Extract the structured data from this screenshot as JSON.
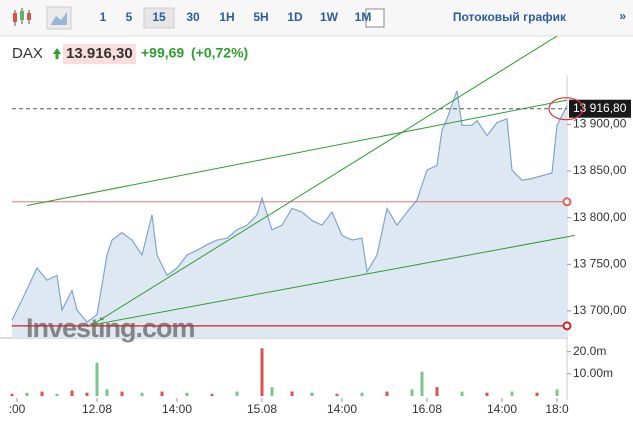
{
  "toolbar": {
    "intervals": [
      "1",
      "5",
      "15",
      "30",
      "1H",
      "5H",
      "1D",
      "1W",
      "1M"
    ],
    "active_interval": 2,
    "stream": "Потоковый график",
    "more": "»"
  },
  "header": {
    "symbol": "DAX",
    "price": "13.916,30",
    "change": "+99,69",
    "change_pct": "(+0,72%)",
    "watermark": "Investing.com"
  },
  "chart_data": [
    {
      "type": "area",
      "color": "#7fa6cc",
      "fill": "#dde8f2",
      "x": [
        0,
        2,
        5,
        7,
        9,
        10,
        12,
        13,
        15,
        17,
        19,
        20,
        22,
        24,
        26,
        28,
        29,
        31,
        33,
        35,
        37,
        39,
        41,
        43,
        45,
        47,
        49,
        50,
        52,
        54,
        56,
        58,
        60,
        62,
        64,
        66,
        68,
        70,
        71,
        73,
        75,
        77,
        79,
        81,
        83,
        85,
        86,
        87,
        89,
        90,
        92,
        93,
        95,
        97,
        99,
        100,
        102,
        104,
        106,
        108,
        109,
        111
      ],
      "values": [
        13690,
        13712,
        13746,
        13733,
        13738,
        13701,
        13722,
        13701,
        13688,
        13696,
        13760,
        13776,
        13784,
        13776,
        13760,
        13803,
        13760,
        13738,
        13746,
        13760,
        13765,
        13771,
        13776,
        13778,
        13787,
        13792,
        13803,
        13821,
        13787,
        13792,
        13810,
        13806,
        13797,
        13792,
        13806,
        13781,
        13776,
        13778,
        13742,
        13760,
        13810,
        13792,
        13806,
        13819,
        13851,
        13856,
        13894,
        13906,
        13936,
        13899,
        13899,
        13904,
        13888,
        13902,
        13906,
        13851,
        13840,
        13842,
        13845,
        13848,
        13899,
        13920
      ],
      "xlim": [
        0,
        111
      ],
      "ylim": [
        13671,
        13939
      ],
      "xticks": [
        {
          "value": 1,
          "label": ":00"
        },
        {
          "value": 17,
          "label": "12.08"
        },
        {
          "value": 33,
          "label": "14:00"
        },
        {
          "value": 50,
          "label": "15.08"
        },
        {
          "value": 66,
          "label": "14:00"
        },
        {
          "value": 83,
          "label": "16.08"
        },
        {
          "value": 98,
          "label": "14:00"
        },
        {
          "value": 109,
          "label": "18:0"
        }
      ],
      "yticks": [
        {
          "value": 13700,
          "label": "13 700,00"
        },
        {
          "value": 13750,
          "label": "13 750,00"
        },
        {
          "value": 13800,
          "label": "13 800,00"
        },
        {
          "value": 13850,
          "label": "13 850,00"
        },
        {
          "value": 13900,
          "label": "13 900,00"
        }
      ],
      "last_price": {
        "value": 13916.8,
        "label": "13 916,80"
      },
      "lines": [
        {
          "x": [
            3,
            111
          ],
          "y": [
            13813,
            13926
          ],
          "color": "#2e9e2e"
        },
        {
          "x": [
            16,
            119
          ],
          "y": [
            13685,
            14028
          ],
          "color": "#2e9e2e"
        },
        {
          "x": [
            16,
            112.6
          ],
          "y": [
            13685,
            13781
          ],
          "color": "#2e9e2e"
        }
      ],
      "levels": [
        {
          "value": 13817,
          "color": "#e06060"
        },
        {
          "value": 13684,
          "color": "#cc2222"
        }
      ]
    },
    {
      "type": "bar",
      "xlim": [
        0,
        111
      ],
      "ylim": [
        0,
        23000000
      ],
      "yticks": [
        {
          "value": 20000000,
          "label": "20.0m"
        },
        {
          "value": 10000000,
          "label": "10.00m"
        }
      ],
      "x": [
        0,
        3,
        6,
        9,
        12,
        15,
        17,
        19,
        22,
        26,
        30,
        35,
        40,
        45,
        50,
        52,
        56,
        60,
        65,
        70,
        75,
        80,
        82,
        85,
        90,
        95,
        100,
        105,
        109
      ],
      "values": [
        1000000,
        1500000,
        2000000,
        1000000,
        2500000,
        1500000,
        15000000,
        3000000,
        2000000,
        1500000,
        2000000,
        1500000,
        1000000,
        2000000,
        21500000,
        4000000,
        2000000,
        1500000,
        1000000,
        1500000,
        2000000,
        3000000,
        11000000,
        4000000,
        2000000,
        1500000,
        2000000,
        1500000,
        3000000
      ],
      "colors": [
        "#d9534f",
        "#7cc58a",
        "#d9534f",
        "#7cc58a",
        "#d9534f",
        "#d9534f",
        "#7cc58a",
        "#7cc58a",
        "#d9534f",
        "#7cc58a",
        "#d9534f",
        "#7cc58a",
        "#d9534f",
        "#7cc58a",
        "#d9534f",
        "#7cc58a",
        "#d9534f",
        "#7cc58a",
        "#d9534f",
        "#7cc58a",
        "#d9534f",
        "#7cc58a",
        "#7cc58a",
        "#d9534f",
        "#7cc58a",
        "#d9534f",
        "#7cc58a",
        "#d9534f",
        "#7cc58a"
      ]
    }
  ]
}
